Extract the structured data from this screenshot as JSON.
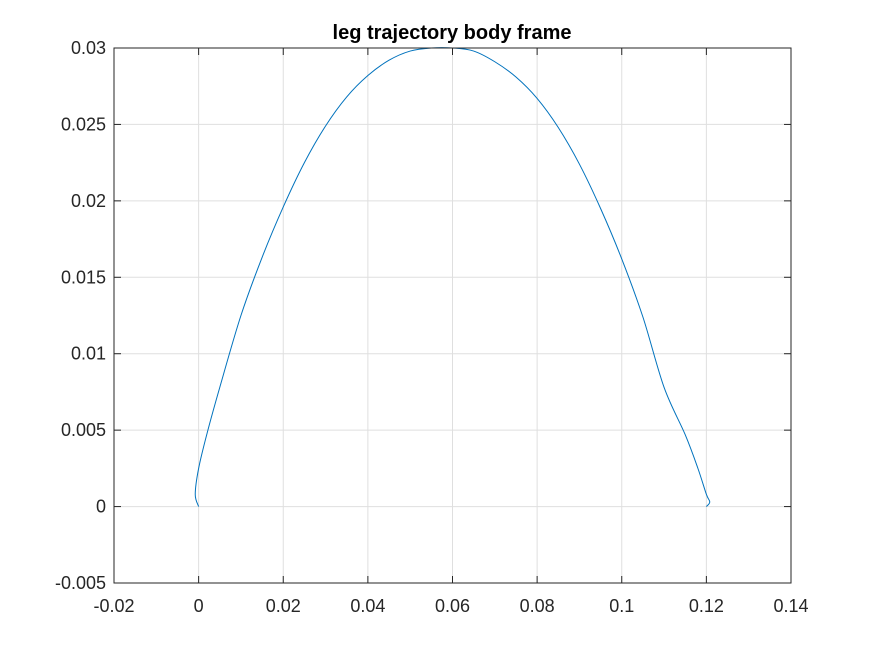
{
  "chart_data": {
    "type": "line",
    "title": "leg trajectory body frame",
    "xlabel": "",
    "ylabel": "",
    "xlim": [
      -0.02,
      0.14
    ],
    "ylim": [
      -0.005,
      0.03
    ],
    "x_ticks": [
      -0.02,
      0,
      0.02,
      0.04,
      0.06,
      0.08,
      0.1,
      0.12,
      0.14
    ],
    "x_tick_labels": [
      "-0.02",
      "0",
      "0.02",
      "0.04",
      "0.06",
      "0.08",
      "0.1",
      "0.12",
      "0.14"
    ],
    "y_ticks": [
      -0.005,
      0,
      0.005,
      0.01,
      0.015,
      0.02,
      0.025,
      0.03
    ],
    "y_tick_labels": [
      "-0.005",
      "0",
      "0.005",
      "0.01",
      "0.015",
      "0.02",
      "0.025",
      "0.03"
    ],
    "grid": true,
    "legend": "none",
    "series": [
      {
        "color": "#0072BD",
        "x": [
          0,
          -0.0008,
          0.0,
          0.002,
          0.005,
          0.01,
          0.015,
          0.02,
          0.025,
          0.03,
          0.035,
          0.04,
          0.045,
          0.05,
          0.055,
          0.06,
          0.065,
          0.07,
          0.075,
          0.08,
          0.085,
          0.09,
          0.095,
          0.1,
          0.105,
          0.11,
          0.115,
          0.118,
          0.12,
          0.1208,
          0.12
        ],
        "y": [
          0,
          0.0008,
          0.0025,
          0.0048,
          0.0078,
          0.0125,
          0.0163,
          0.0196,
          0.0225,
          0.0249,
          0.0268,
          0.0282,
          0.0292,
          0.0298,
          0.03,
          0.03,
          0.0298,
          0.0291,
          0.0281,
          0.0267,
          0.0248,
          0.0224,
          0.0195,
          0.0162,
          0.0124,
          0.0078,
          0.0047,
          0.0025,
          0.0008,
          0.0003,
          0
        ]
      }
    ]
  }
}
